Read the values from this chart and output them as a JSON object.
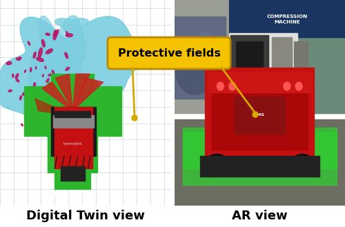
{
  "left_label": "Digital Twin view",
  "right_label": "AR view",
  "annotation_text": "Protective fields",
  "annotation_box_facecolor": "#F5C200",
  "annotation_box_edgecolor": "#B8880A",
  "annotation_text_color": "#000000",
  "annotation_fontsize": 11.5,
  "label_fontsize": 13,
  "left_bg_color": "#F5D5B0",
  "right_bg_color": "#C5D8EC",
  "figure_bg": "#FFFFFF",
  "arrow_color": "#D4A800",
  "left_panel_bg": "#9BAAB5",
  "right_panel_bg": "#7A8070",
  "cyan_blob_color": "#78CDE0",
  "green_field_color": "#2DB52D",
  "robot_red": "#C41010",
  "robot_dark": "#5A0A0A",
  "magenta_color": "#BB1166",
  "beam_red": "#CC2020",
  "beam_orange": "#AA3010"
}
